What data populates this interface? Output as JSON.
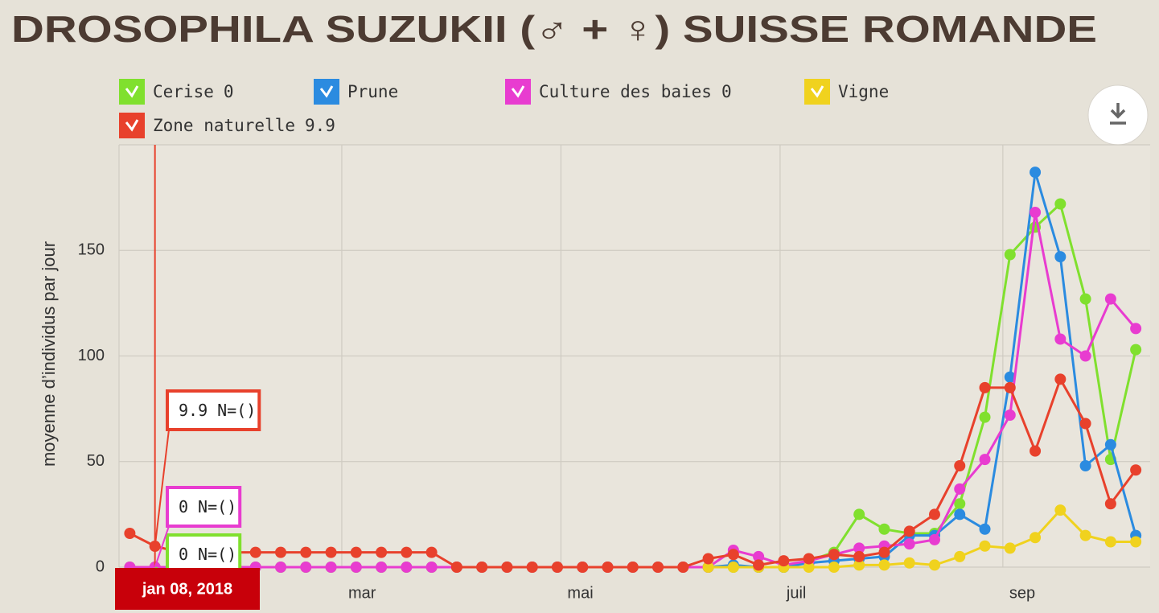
{
  "chart_data": {
    "type": "line",
    "title": "DROSOPHILA SUZUKII (♂ + ♀) SUISSE ROMANDE",
    "y_label": "moyenne d’individus par jour",
    "x": [
      "2018-01-01",
      "2018-01-08",
      "2018-01-15",
      "2018-01-22",
      "2018-01-29",
      "2018-02-05",
      "2018-02-12",
      "2018-02-19",
      "2018-02-26",
      "2018-03-05",
      "2018-03-12",
      "2018-03-19",
      "2018-03-26",
      "2018-04-02",
      "2018-04-09",
      "2018-04-16",
      "2018-04-23",
      "2018-04-30",
      "2018-05-07",
      "2018-05-14",
      "2018-05-21",
      "2018-05-28",
      "2018-06-04",
      "2018-06-11",
      "2018-06-18",
      "2018-06-25",
      "2018-07-02",
      "2018-07-09",
      "2018-07-16",
      "2018-07-23",
      "2018-07-30",
      "2018-08-06",
      "2018-08-13",
      "2018-08-20",
      "2018-08-27",
      "2018-09-03",
      "2018-09-10",
      "2018-09-17",
      "2018-09-24",
      "2018-10-01",
      "2018-10-08"
    ],
    "series": [
      {
        "name": "Cerise",
        "color": "#80e02e",
        "values": [
          0,
          0,
          0,
          0,
          0,
          0,
          0,
          0,
          0,
          0,
          0,
          0,
          0,
          0,
          0,
          0,
          0,
          0,
          0,
          0,
          0,
          0,
          0,
          0,
          0,
          0,
          0,
          3,
          7,
          25,
          18,
          16,
          16,
          30,
          71,
          148,
          161,
          172,
          127,
          51,
          103
        ]
      },
      {
        "name": "Prune",
        "color": "#2b8be0",
        "values": [
          null,
          null,
          null,
          null,
          null,
          null,
          null,
          null,
          null,
          null,
          null,
          null,
          null,
          null,
          null,
          null,
          null,
          null,
          null,
          null,
          null,
          null,
          null,
          0,
          1,
          0,
          0,
          2,
          3,
          4,
          5,
          15,
          15,
          25,
          18,
          90,
          187,
          147,
          48,
          58,
          15
        ]
      },
      {
        "name": "Culture des baies",
        "color": "#e83cd0",
        "values": [
          0,
          0,
          0,
          0,
          0,
          0,
          0,
          0,
          0,
          0,
          0,
          0,
          0,
          0,
          0,
          0,
          0,
          0,
          0,
          0,
          0,
          0,
          0,
          0,
          8,
          5,
          1,
          3,
          6,
          9,
          10,
          11,
          13,
          37,
          51,
          72,
          168,
          108,
          100,
          127,
          113
        ]
      },
      {
        "name": "Vigne",
        "color": "#f0d21e",
        "values": [
          null,
          null,
          null,
          null,
          null,
          null,
          null,
          null,
          null,
          null,
          null,
          null,
          null,
          null,
          null,
          null,
          null,
          null,
          null,
          null,
          null,
          null,
          null,
          0,
          0,
          0,
          0,
          0,
          0,
          1,
          1,
          2,
          1,
          5,
          10,
          9,
          14,
          27,
          15,
          12,
          12
        ]
      },
      {
        "name": "Zone naturelle",
        "color": "#e8412c",
        "values": [
          16,
          9.9,
          7,
          7,
          7,
          7,
          7,
          7,
          7,
          7,
          7,
          7,
          7,
          0,
          0,
          0,
          0,
          0,
          0,
          0,
          0,
          0,
          0,
          4,
          6,
          1,
          3,
          4,
          6,
          5,
          7,
          17,
          25,
          48,
          85,
          85,
          55,
          89,
          68,
          30,
          46
        ]
      }
    ],
    "xlim": [
      "2017-12-29",
      "2018-10-12"
    ],
    "xticks": [
      {
        "value": "2018-03-01",
        "label": "mar"
      },
      {
        "value": "2018-05-01",
        "label": "mai"
      },
      {
        "value": "2018-07-01",
        "label": "juil"
      },
      {
        "value": "2018-09-01",
        "label": "sep"
      }
    ],
    "ylim": [
      0,
      200
    ],
    "yticks": [
      0,
      50,
      100,
      150
    ],
    "grid": true,
    "legend": "top",
    "tooltip": {
      "x": "2018-01-08",
      "label": "jan 08, 2018",
      "n_label": "N=()"
    }
  }
}
